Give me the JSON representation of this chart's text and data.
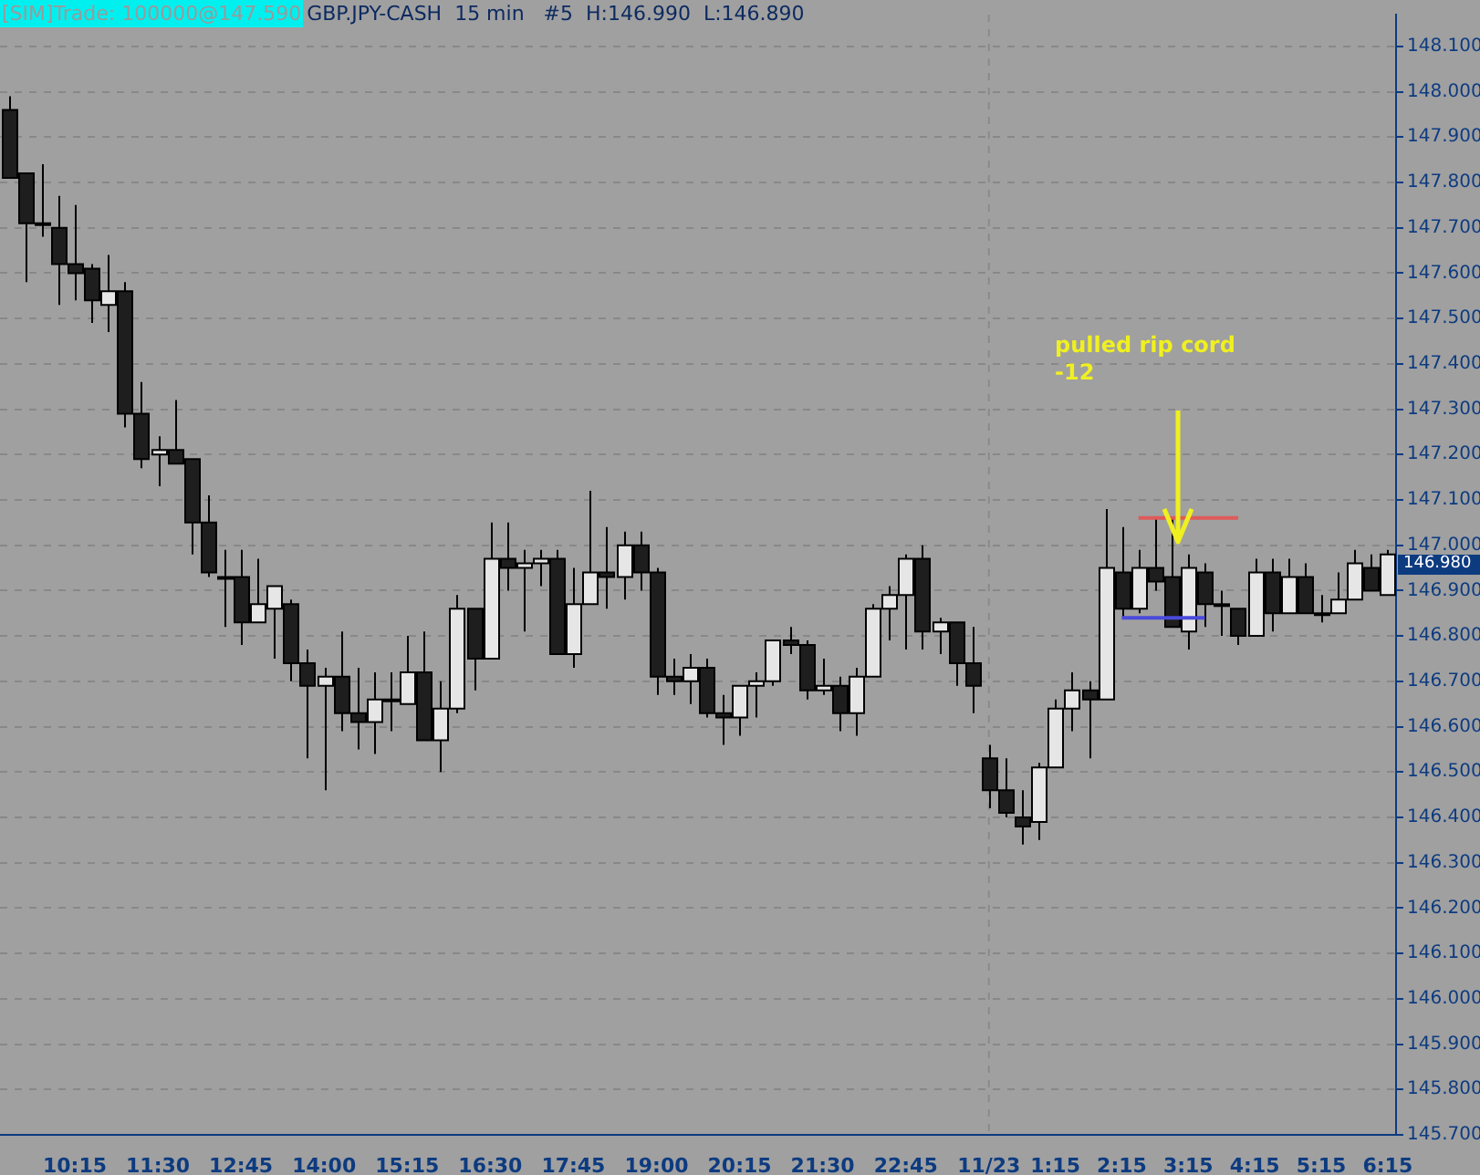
{
  "chart_data": {
    "type": "candlestick",
    "title": "GBP.JPY-CASH  15 min   #5  H:146.990  L:146.890",
    "subtitle": "[SIM]Trade: 100000@147.590",
    "categories": [
      null,
      null,
      null,
      null,
      "10:15",
      null,
      null,
      null,
      null,
      "11:30",
      null,
      null,
      null,
      null,
      "12:45",
      null,
      null,
      null,
      null,
      "14:00",
      null,
      null,
      null,
      null,
      "15:15",
      null,
      null,
      null,
      null,
      "16:30",
      null,
      null,
      null,
      null,
      "17:45",
      null,
      null,
      null,
      null,
      "19:00",
      null,
      null,
      null,
      null,
      "20:15",
      null,
      null,
      null,
      null,
      "21:30",
      null,
      null,
      null,
      null,
      "22:45",
      null,
      null,
      null,
      null,
      "11/23",
      null,
      null,
      null,
      "1:15",
      null,
      null,
      null,
      "2:15",
      null,
      null,
      null,
      "3:15",
      null,
      null,
      null,
      "4:15",
      null,
      null,
      null,
      "5:15",
      null,
      null,
      null,
      "6:15"
    ],
    "ohlc": [
      [
        147.96,
        147.99,
        147.81,
        147.81
      ],
      [
        147.82,
        147.82,
        147.58,
        147.71
      ],
      [
        147.71,
        147.84,
        147.68,
        147.71
      ],
      [
        147.7,
        147.77,
        147.53,
        147.62
      ],
      [
        147.62,
        147.75,
        147.54,
        147.6
      ],
      [
        147.61,
        147.62,
        147.49,
        147.54
      ],
      [
        147.53,
        147.64,
        147.47,
        147.56
      ],
      [
        147.56,
        147.58,
        147.26,
        147.29
      ],
      [
        147.29,
        147.36,
        147.17,
        147.19
      ],
      [
        147.2,
        147.24,
        147.13,
        147.21
      ],
      [
        147.21,
        147.32,
        147.18,
        147.18
      ],
      [
        147.19,
        147.19,
        146.98,
        147.05
      ],
      [
        147.05,
        147.11,
        146.93,
        146.94
      ],
      [
        146.93,
        146.99,
        146.82,
        146.93
      ],
      [
        146.93,
        146.99,
        146.78,
        146.83
      ],
      [
        146.83,
        146.97,
        146.83,
        146.87
      ],
      [
        146.86,
        146.91,
        146.75,
        146.91
      ],
      [
        146.87,
        146.88,
        146.7,
        146.74
      ],
      [
        146.74,
        146.77,
        146.53,
        146.69
      ],
      [
        146.69,
        146.73,
        146.46,
        146.71
      ],
      [
        146.71,
        146.81,
        146.59,
        146.63
      ],
      [
        146.63,
        146.73,
        146.55,
        146.61
      ],
      [
        146.61,
        146.72,
        146.54,
        146.66
      ],
      [
        146.66,
        146.72,
        146.59,
        146.66
      ],
      [
        146.65,
        146.8,
        146.65,
        146.72
      ],
      [
        146.72,
        146.81,
        146.57,
        146.57
      ],
      [
        146.57,
        146.7,
        146.5,
        146.64
      ],
      [
        146.64,
        146.89,
        146.63,
        146.86
      ],
      [
        146.86,
        146.86,
        146.68,
        146.75
      ],
      [
        146.75,
        147.05,
        146.75,
        146.97
      ],
      [
        146.97,
        147.05,
        146.9,
        146.95
      ],
      [
        146.95,
        146.99,
        146.81,
        146.96
      ],
      [
        146.96,
        146.99,
        146.91,
        146.97
      ],
      [
        146.97,
        146.99,
        146.76,
        146.76
      ],
      [
        146.76,
        146.95,
        146.73,
        146.87
      ],
      [
        146.87,
        147.12,
        146.87,
        146.94
      ],
      [
        146.94,
        147.04,
        146.86,
        146.93
      ],
      [
        146.93,
        147.03,
        146.88,
        147.0
      ],
      [
        147.0,
        147.03,
        146.9,
        146.94
      ],
      [
        146.94,
        146.95,
        146.67,
        146.71
      ],
      [
        146.71,
        146.75,
        146.67,
        146.7
      ],
      [
        146.7,
        146.76,
        146.65,
        146.73
      ],
      [
        146.73,
        146.75,
        146.62,
        146.63
      ],
      [
        146.63,
        146.67,
        146.56,
        146.62
      ],
      [
        146.62,
        146.69,
        146.58,
        146.69
      ],
      [
        146.69,
        146.72,
        146.62,
        146.7
      ],
      [
        146.7,
        146.79,
        146.69,
        146.79
      ],
      [
        146.79,
        146.82,
        146.76,
        146.78
      ],
      [
        146.78,
        146.79,
        146.66,
        146.68
      ],
      [
        146.68,
        146.75,
        146.67,
        146.69
      ],
      [
        146.69,
        146.71,
        146.59,
        146.63
      ],
      [
        146.63,
        146.73,
        146.58,
        146.71
      ],
      [
        146.71,
        146.87,
        146.71,
        146.86
      ],
      [
        146.86,
        146.91,
        146.79,
        146.89
      ],
      [
        146.89,
        146.98,
        146.77,
        146.97
      ],
      [
        146.97,
        147.0,
        146.77,
        146.81
      ],
      [
        146.81,
        146.84,
        146.76,
        146.83
      ],
      [
        146.83,
        146.83,
        146.69,
        146.74
      ],
      [
        146.74,
        146.82,
        146.63,
        146.69
      ],
      [
        146.53,
        146.56,
        146.42,
        146.46
      ],
      [
        146.46,
        146.53,
        146.4,
        146.41
      ],
      [
        146.4,
        146.46,
        146.34,
        146.38
      ],
      [
        146.39,
        146.52,
        146.35,
        146.51
      ],
      [
        146.51,
        146.66,
        146.51,
        146.64
      ],
      [
        146.64,
        146.72,
        146.59,
        146.68
      ],
      [
        146.68,
        146.7,
        146.53,
        146.66
      ],
      [
        146.66,
        147.08,
        146.66,
        146.95
      ],
      [
        146.94,
        147.04,
        146.84,
        146.86
      ],
      [
        146.86,
        146.99,
        146.85,
        146.95
      ],
      [
        146.95,
        147.06,
        146.9,
        146.92
      ],
      [
        146.93,
        147.06,
        146.82,
        146.82
      ],
      [
        146.81,
        146.98,
        146.77,
        146.95
      ],
      [
        146.94,
        146.96,
        146.82,
        146.87
      ],
      [
        146.87,
        146.9,
        146.8,
        146.87
      ],
      [
        146.86,
        146.86,
        146.78,
        146.8
      ],
      [
        146.8,
        146.97,
        146.8,
        146.94
      ],
      [
        146.94,
        146.97,
        146.81,
        146.85
      ],
      [
        146.85,
        146.97,
        146.85,
        146.93
      ],
      [
        146.93,
        146.96,
        146.85,
        146.85
      ],
      [
        146.85,
        146.89,
        146.83,
        146.85
      ],
      [
        146.85,
        146.94,
        146.85,
        146.88
      ],
      [
        146.88,
        146.99,
        146.88,
        146.96
      ],
      [
        146.95,
        146.98,
        146.9,
        146.9
      ],
      [
        146.89,
        146.99,
        146.89,
        146.98
      ]
    ],
    "colors": [
      "#1e1e1e",
      "#1e1e1e",
      "#e6e6e6",
      "#1e1e1e",
      "#1e1e1e",
      "#1e1e1e",
      "#e6e6e6",
      "#1e1e1e",
      "#1e1e1e",
      "#e6e6e6",
      "#1e1e1e",
      "#1e1e1e",
      "#1e1e1e",
      "#1e1e1e",
      "#1e1e1e",
      "#e6e6e6",
      "#e6e6e6",
      "#1e1e1e",
      "#1e1e1e",
      "#e6e6e6",
      "#1e1e1e",
      "#1e1e1e",
      "#e6e6e6",
      "#1e1e1e",
      "#e6e6e6",
      "#1e1e1e",
      "#e6e6e6",
      "#e6e6e6",
      "#1e1e1e",
      "#e6e6e6",
      "#1e1e1e",
      "#e6e6e6",
      "#e6e6e6",
      "#1e1e1e",
      "#e6e6e6",
      "#e6e6e6",
      "#1e1e1e",
      "#e6e6e6",
      "#1e1e1e",
      "#1e1e1e",
      "#1e1e1e",
      "#e6e6e6",
      "#1e1e1e",
      "#1e1e1e",
      "#e6e6e6",
      "#e6e6e6",
      "#e6e6e6",
      "#1e1e1e",
      "#1e1e1e",
      "#e6e6e6",
      "#1e1e1e",
      "#e6e6e6",
      "#e6e6e6",
      "#e6e6e6",
      "#e6e6e6",
      "#1e1e1e",
      "#e6e6e6",
      "#1e1e1e",
      "#1e1e1e",
      "#1e1e1e",
      "#1e1e1e",
      "#1e1e1e",
      "#e6e6e6",
      "#e6e6e6",
      "#e6e6e6",
      "#1e1e1e",
      "#e6e6e6",
      "#1e1e1e",
      "#e6e6e6",
      "#1e1e1e",
      "#1e1e1e",
      "#e6e6e6",
      "#1e1e1e",
      "#1e1e1e",
      "#1e1e1e",
      "#e6e6e6",
      "#1e1e1e",
      "#e6e6e6",
      "#1e1e1e",
      "#1e1e1e",
      "#e6e6e6",
      "#e6e6e6",
      "#1e1e1e",
      "#e6e6e6"
    ],
    "series": [
      {
        "type": "line",
        "color": "#e05a5a",
        "values": [
          null,
          null,
          null,
          null,
          null,
          null,
          null,
          null,
          null,
          null,
          null,
          null,
          null,
          null,
          null,
          null,
          null,
          null,
          null,
          null,
          null,
          null,
          null,
          null,
          null,
          null,
          null,
          null,
          null,
          null,
          null,
          null,
          null,
          null,
          null,
          null,
          null,
          null,
          null,
          null,
          null,
          null,
          null,
          null,
          null,
          null,
          null,
          null,
          null,
          null,
          null,
          null,
          null,
          null,
          null,
          null,
          null,
          null,
          null,
          null,
          null,
          null,
          null,
          null,
          null,
          null,
          null,
          null,
          147.06,
          147.06,
          147.06,
          147.06,
          147.06,
          147.06,
          147.06,
          null,
          null,
          null,
          null,
          null,
          null,
          null,
          null,
          null
        ]
      },
      {
        "type": "line",
        "color": "#4a4adc",
        "values": [
          null,
          null,
          null,
          null,
          null,
          null,
          null,
          null,
          null,
          null,
          null,
          null,
          null,
          null,
          null,
          null,
          null,
          null,
          null,
          null,
          null,
          null,
          null,
          null,
          null,
          null,
          null,
          null,
          null,
          null,
          null,
          null,
          null,
          null,
          null,
          null,
          null,
          null,
          null,
          null,
          null,
          null,
          null,
          null,
          null,
          null,
          null,
          null,
          null,
          null,
          null,
          null,
          null,
          null,
          null,
          null,
          null,
          null,
          null,
          null,
          null,
          null,
          null,
          null,
          null,
          null,
          null,
          146.84,
          146.84,
          146.84,
          146.84,
          146.84,
          146.84,
          null,
          null,
          null,
          null,
          null,
          null,
          null,
          null,
          null,
          null,
          null
        ]
      }
    ],
    "ylim": [
      145.7,
      148.17
    ],
    "yticks": [
      {
        "value": 145.7,
        "label": "145.700"
      },
      {
        "value": 145.8,
        "label": "145.800"
      },
      {
        "value": 145.9,
        "label": "145.900"
      },
      {
        "value": 146.0,
        "label": "146.000"
      },
      {
        "value": 146.1,
        "label": "146.100"
      },
      {
        "value": 146.2,
        "label": "146.200"
      },
      {
        "value": 146.3,
        "label": "146.300"
      },
      {
        "value": 146.4,
        "label": "146.400"
      },
      {
        "value": 146.5,
        "label": "146.500"
      },
      {
        "value": 146.6,
        "label": "146.600"
      },
      {
        "value": 146.7,
        "label": "146.700"
      },
      {
        "value": 146.8,
        "label": "146.800"
      },
      {
        "value": 146.9,
        "label": "146.900"
      },
      {
        "value": 147.0,
        "label": "147.000"
      },
      {
        "value": 147.1,
        "label": "147.100"
      },
      {
        "value": 147.2,
        "label": "147.200"
      },
      {
        "value": 147.3,
        "label": "147.300"
      },
      {
        "value": 147.4,
        "label": "147.400"
      },
      {
        "value": 147.5,
        "label": "147.500"
      },
      {
        "value": 147.6,
        "label": "147.600"
      },
      {
        "value": 147.7,
        "label": "147.700"
      },
      {
        "value": 147.8,
        "label": "147.800"
      },
      {
        "value": 147.9,
        "label": "147.900"
      },
      {
        "value": 148.0,
        "label": "148.000"
      },
      {
        "value": 148.1,
        "label": "148.100"
      }
    ],
    "grid": "y",
    "ref_lines": [
      {
        "axis": "x",
        "value": "11/23",
        "color": "#8a8a8a",
        "line_style": "dashed"
      }
    ],
    "annotations": [
      "pulled rip cord",
      "-12",
      "146.980"
    ]
  }
}
